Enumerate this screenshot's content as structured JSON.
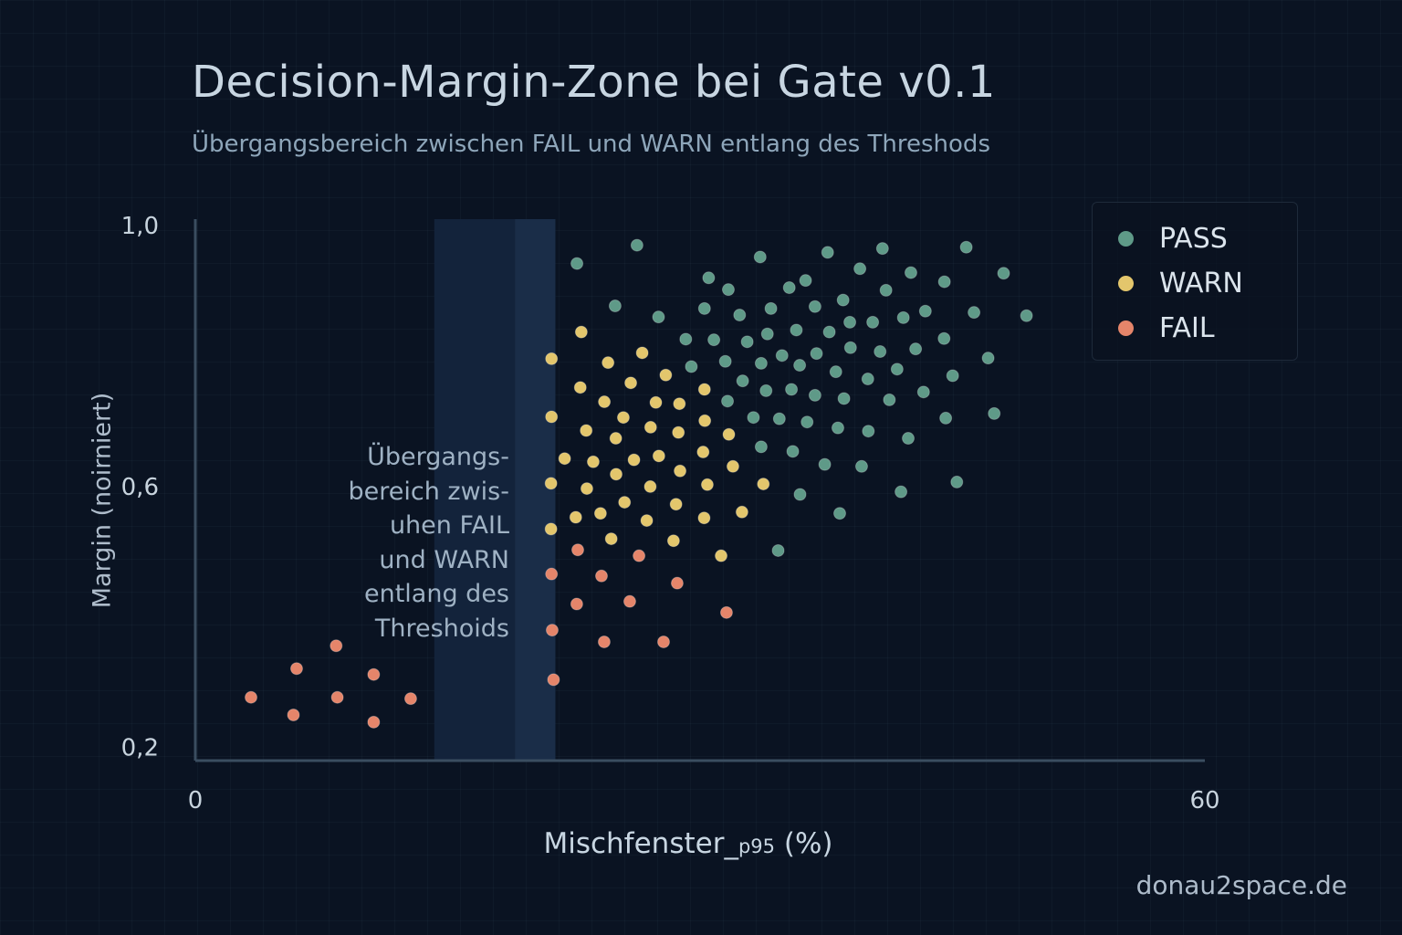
{
  "title": "Decision-Margin-Zone bei Gate v0.1",
  "subtitle": "Übergangsbereich zwischen FAIL und WARN entlang des Threshods",
  "watermark": "donau2space.de",
  "annotation_lines": [
    "Übergangs-",
    "bereich zwis-",
    "uhen FAIL",
    "und WARN",
    "entlang des",
    "Threshoids"
  ],
  "colors": {
    "PASS": "#5f9a88",
    "WARN": "#e3c66c",
    "FAIL": "#e5856a",
    "band_outer": "#13233b",
    "band_inner": "#1a2d48",
    "axis": "#3a4d60",
    "background": "#0a1322"
  },
  "chart_data": {
    "type": "scatter",
    "title": "Decision-Margin-Zone bei Gate v0.1",
    "subtitle": "Übergangsbereich zwischen FAIL und WARN entlang des Threshods",
    "xlabel": {
      "main": "Mischfenster_",
      "sub": "p95",
      "suffix": " (%)"
    },
    "ylabel": "Margin (noirniert)",
    "xlim": [
      0,
      60
    ],
    "ylim": [
      0.18,
      1.01
    ],
    "x_ticks": [
      {
        "value": 0,
        "label": "0"
      },
      {
        "value": 60,
        "label": "60"
      }
    ],
    "y_ticks": [
      {
        "value": 0.2,
        "label": "0,2"
      },
      {
        "value": 0.6,
        "label": "0,6"
      },
      {
        "value": 1.0,
        "label": "1,0"
      }
    ],
    "grid": false,
    "legend_position": "top-right",
    "threshold_band": {
      "x_range": [
        14.2,
        21.4
      ],
      "core_range": [
        19.0,
        21.4
      ]
    },
    "series": [
      {
        "name": "PASS",
        "points": [
          [
            26.25,
            0.97
          ],
          [
            22.68,
            0.942
          ],
          [
            33.57,
            0.952
          ],
          [
            37.58,
            0.959
          ],
          [
            40.84,
            0.965
          ],
          [
            45.82,
            0.967
          ],
          [
            39.5,
            0.934
          ],
          [
            42.53,
            0.928
          ],
          [
            48.04,
            0.927
          ],
          [
            44.52,
            0.914
          ],
          [
            30.51,
            0.92
          ],
          [
            31.68,
            0.902
          ],
          [
            35.3,
            0.905
          ],
          [
            36.27,
            0.916
          ],
          [
            41.05,
            0.901
          ],
          [
            24.95,
            0.877
          ],
          [
            27.53,
            0.86
          ],
          [
            30.26,
            0.873
          ],
          [
            32.35,
            0.863
          ],
          [
            34.21,
            0.873
          ],
          [
            36.83,
            0.876
          ],
          [
            38.5,
            0.886
          ],
          [
            38.9,
            0.852
          ],
          [
            40.26,
            0.852
          ],
          [
            42.08,
            0.859
          ],
          [
            43.39,
            0.869
          ],
          [
            46.28,
            0.867
          ],
          [
            49.4,
            0.862
          ],
          [
            29.15,
            0.826
          ],
          [
            30.82,
            0.825
          ],
          [
            32.8,
            0.822
          ],
          [
            34.0,
            0.834
          ],
          [
            35.72,
            0.84
          ],
          [
            37.68,
            0.837
          ],
          [
            44.5,
            0.827
          ],
          [
            29.48,
            0.784
          ],
          [
            31.5,
            0.792
          ],
          [
            33.63,
            0.789
          ],
          [
            34.87,
            0.801
          ],
          [
            35.92,
            0.786
          ],
          [
            36.92,
            0.804
          ],
          [
            38.94,
            0.813
          ],
          [
            40.7,
            0.807
          ],
          [
            42.81,
            0.811
          ],
          [
            47.12,
            0.797
          ],
          [
            38.07,
            0.776
          ],
          [
            39.97,
            0.765
          ],
          [
            41.71,
            0.78
          ],
          [
            45.01,
            0.77
          ],
          [
            32.53,
            0.762
          ],
          [
            31.63,
            0.731
          ],
          [
            33.92,
            0.747
          ],
          [
            35.43,
            0.749
          ],
          [
            36.83,
            0.74
          ],
          [
            38.55,
            0.735
          ],
          [
            41.25,
            0.733
          ],
          [
            43.28,
            0.745
          ],
          [
            33.17,
            0.706
          ],
          [
            34.71,
            0.704
          ],
          [
            36.36,
            0.699
          ],
          [
            38.19,
            0.69
          ],
          [
            40.0,
            0.685
          ],
          [
            42.37,
            0.674
          ],
          [
            44.6,
            0.705
          ],
          [
            47.48,
            0.712
          ],
          [
            33.63,
            0.661
          ],
          [
            35.51,
            0.654
          ],
          [
            37.41,
            0.634
          ],
          [
            39.6,
            0.631
          ],
          [
            45.26,
            0.607
          ],
          [
            35.94,
            0.588
          ],
          [
            41.94,
            0.592
          ],
          [
            38.3,
            0.559
          ],
          [
            34.64,
            0.502
          ]
        ]
      },
      {
        "name": "WARN",
        "points": [
          [
            22.94,
            0.837
          ],
          [
            21.17,
            0.796
          ],
          [
            24.53,
            0.79
          ],
          [
            26.56,
            0.805
          ],
          [
            27.96,
            0.771
          ],
          [
            22.88,
            0.752
          ],
          [
            25.88,
            0.759
          ],
          [
            24.31,
            0.73
          ],
          [
            27.37,
            0.729
          ],
          [
            28.77,
            0.727
          ],
          [
            30.26,
            0.749
          ],
          [
            21.17,
            0.707
          ],
          [
            25.44,
            0.706
          ],
          [
            23.23,
            0.686
          ],
          [
            27.06,
            0.691
          ],
          [
            28.71,
            0.683
          ],
          [
            30.28,
            0.701
          ],
          [
            24.99,
            0.674
          ],
          [
            31.71,
            0.68
          ],
          [
            21.95,
            0.643
          ],
          [
            23.65,
            0.638
          ],
          [
            26.07,
            0.641
          ],
          [
            27.55,
            0.647
          ],
          [
            30.18,
            0.653
          ],
          [
            25.01,
            0.619
          ],
          [
            28.81,
            0.624
          ],
          [
            31.95,
            0.631
          ],
          [
            21.14,
            0.605
          ],
          [
            23.27,
            0.597
          ],
          [
            27.04,
            0.6
          ],
          [
            30.43,
            0.603
          ],
          [
            33.76,
            0.604
          ],
          [
            25.51,
            0.576
          ],
          [
            28.57,
            0.573
          ],
          [
            22.61,
            0.553
          ],
          [
            24.08,
            0.559
          ],
          [
            26.83,
            0.548
          ],
          [
            30.24,
            0.552
          ],
          [
            32.49,
            0.561
          ],
          [
            21.14,
            0.535
          ],
          [
            24.72,
            0.52
          ],
          [
            28.42,
            0.517
          ],
          [
            31.25,
            0.494
          ]
        ]
      },
      {
        "name": "FAIL",
        "points": [
          [
            8.37,
            0.356
          ],
          [
            6.02,
            0.321
          ],
          [
            10.6,
            0.312
          ],
          [
            3.31,
            0.277
          ],
          [
            8.44,
            0.277
          ],
          [
            12.8,
            0.275
          ],
          [
            5.83,
            0.25
          ],
          [
            10.6,
            0.239
          ],
          [
            22.73,
            0.503
          ],
          [
            26.37,
            0.494
          ],
          [
            21.17,
            0.466
          ],
          [
            24.14,
            0.463
          ],
          [
            28.64,
            0.452
          ],
          [
            22.67,
            0.42
          ],
          [
            25.82,
            0.424
          ],
          [
            31.57,
            0.407
          ],
          [
            21.21,
            0.38
          ],
          [
            24.3,
            0.362
          ],
          [
            27.83,
            0.362
          ],
          [
            21.29,
            0.304
          ]
        ]
      }
    ]
  }
}
